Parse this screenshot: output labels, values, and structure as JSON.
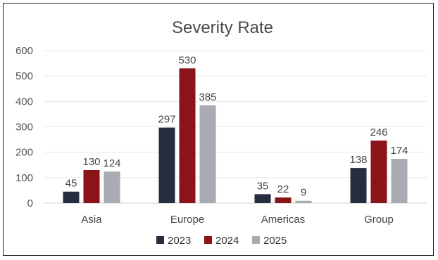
{
  "chart_data": {
    "type": "bar",
    "title": "Severity Rate",
    "categories": [
      "Asia",
      "Europe",
      "Americas",
      "Group"
    ],
    "series": [
      {
        "name": "2023",
        "color": "#262d3f",
        "values": [
          45,
          297,
          35,
          138
        ]
      },
      {
        "name": "2024",
        "color": "#8b1419",
        "values": [
          130,
          530,
          22,
          246
        ]
      },
      {
        "name": "2025",
        "color": "#a8abb0",
        "values": [
          124,
          385,
          9,
          174
        ]
      }
    ],
    "ylim": [
      0,
      600
    ],
    "yticks": [
      0,
      100,
      200,
      300,
      400,
      500,
      600
    ],
    "grid": true,
    "legend": "bottom"
  }
}
